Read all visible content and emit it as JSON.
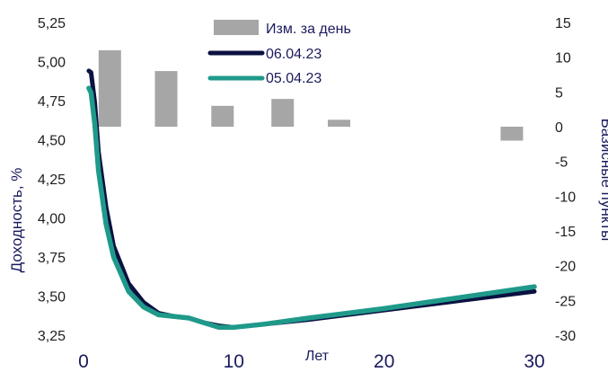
{
  "chart_data": {
    "type": "line",
    "title": "",
    "xlabel": "Лет",
    "ylabel_left": "Доходность, %",
    "ylabel_right": "Базисные пункты",
    "xlim": [
      0,
      30
    ],
    "ylim_left": [
      3.25,
      5.25
    ],
    "ylim_right": [
      -30,
      15
    ],
    "x_ticks": [
      "0",
      "10",
      "20",
      "30"
    ],
    "y_left_ticks": [
      "3,25",
      "3,50",
      "3,75",
      "4,00",
      "4,25",
      "4,50",
      "4,75",
      "5,00",
      "5,25"
    ],
    "y_right_ticks": [
      "-30",
      "-25",
      "-20",
      "-15",
      "-10",
      "-5",
      "0",
      "5",
      "10",
      "15"
    ],
    "grid": false,
    "legend_position": "top-center",
    "bars": {
      "name": "Изм. за день",
      "color": "#a6a6a6",
      "x": [
        1.75,
        5.5,
        9.25,
        13.25,
        17,
        28.5
      ],
      "values": [
        11,
        8,
        3,
        4,
        1,
        -2
      ]
    },
    "series": [
      {
        "name": "06.04.23",
        "color": "#0b1140",
        "x": [
          0.35,
          0.5,
          0.75,
          1,
          1.5,
          2,
          3,
          4,
          5,
          6,
          7,
          8,
          9,
          10,
          12,
          15,
          20,
          25,
          30
        ],
        "values": [
          4.94,
          4.93,
          4.74,
          4.42,
          4.07,
          3.82,
          3.58,
          3.46,
          3.39,
          3.37,
          3.36,
          3.33,
          3.31,
          3.3,
          3.32,
          3.35,
          3.41,
          3.47,
          3.53
        ]
      },
      {
        "name": "05.04.23",
        "color": "#1f9a8a",
        "x": [
          0.35,
          0.5,
          0.75,
          1,
          1.5,
          2,
          3,
          4,
          5,
          6,
          7,
          8,
          9,
          10,
          12,
          15,
          20,
          25,
          30
        ],
        "values": [
          4.83,
          4.8,
          4.6,
          4.3,
          3.96,
          3.75,
          3.53,
          3.43,
          3.38,
          3.37,
          3.36,
          3.33,
          3.3,
          3.3,
          3.32,
          3.36,
          3.42,
          3.49,
          3.56
        ]
      }
    ]
  }
}
